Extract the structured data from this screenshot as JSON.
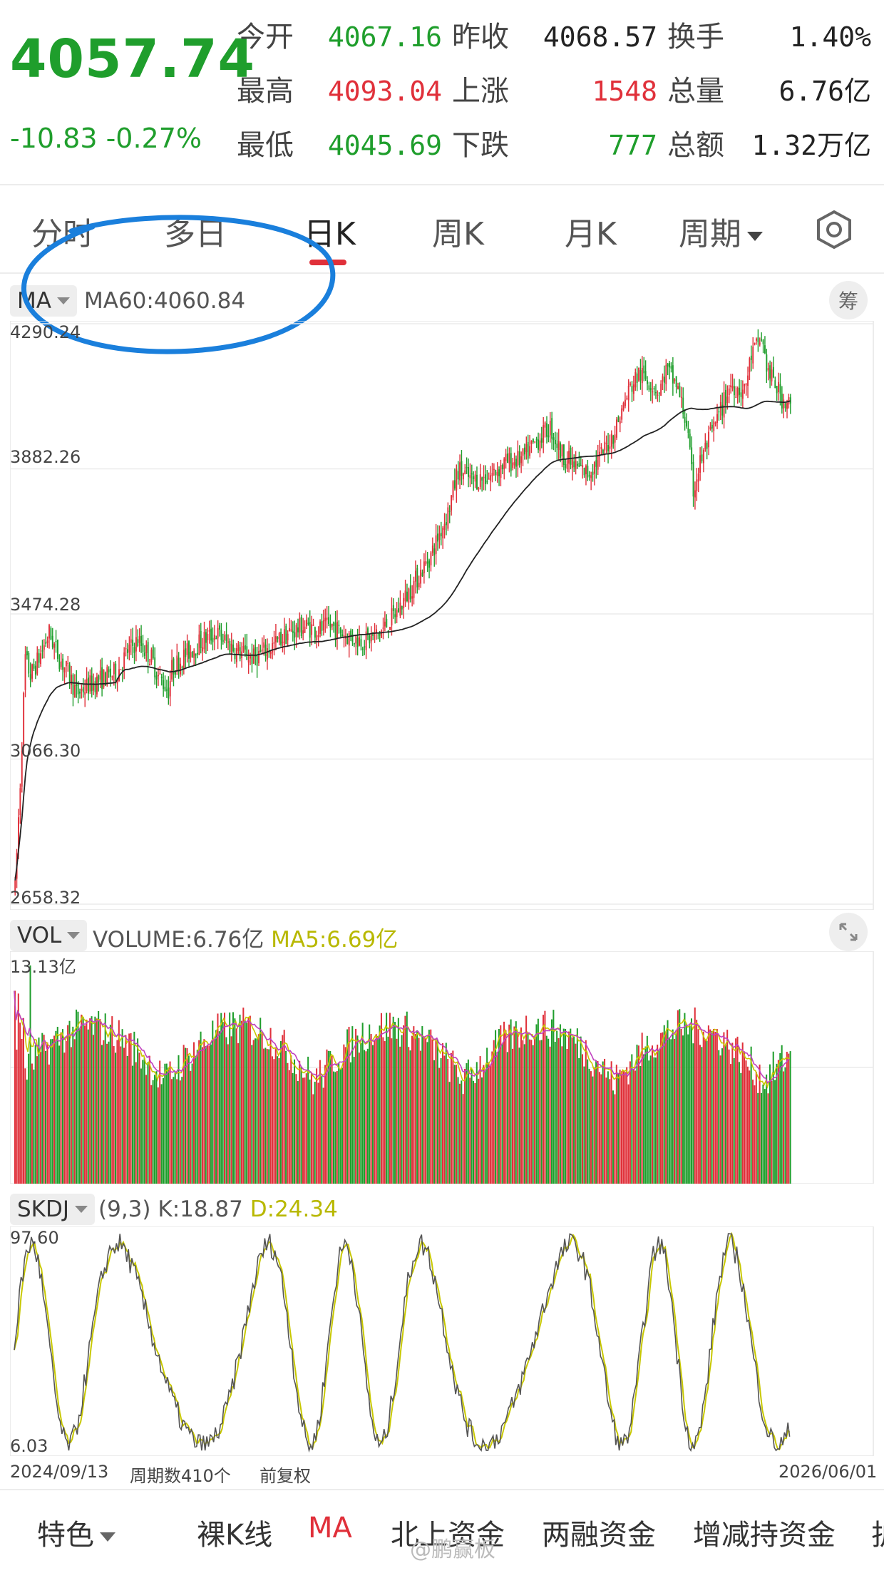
{
  "quote": {
    "price": "4057.74",
    "change": "-10.83",
    "change_pct": "-0.27%",
    "stats": [
      {
        "label": "今开",
        "value": "4067.16",
        "color": "green"
      },
      {
        "label": "昨收",
        "value": "4068.57",
        "color": "dark"
      },
      {
        "label": "换手",
        "value": "1.40%",
        "color": "dark"
      },
      {
        "label": "最高",
        "value": "4093.04",
        "color": "red"
      },
      {
        "label": "上涨",
        "value": "1548",
        "color": "red"
      },
      {
        "label": "总量",
        "value": "6.76亿",
        "color": "dark"
      },
      {
        "label": "最低",
        "value": "4045.69",
        "color": "green"
      },
      {
        "label": "下跌",
        "value": "777",
        "color": "green"
      },
      {
        "label": "总额",
        "value": "1.32万亿",
        "color": "dark"
      }
    ]
  },
  "tabs": [
    {
      "label": "分时"
    },
    {
      "label": "多日"
    },
    {
      "label": "日K",
      "active": true
    },
    {
      "label": "周K"
    },
    {
      "label": "月K"
    },
    {
      "label": "周期"
    }
  ],
  "main_chart": {
    "indicator": "MA",
    "ma_label": "MA60:4060.84",
    "chip_button": "筹",
    "y_ticks": [
      "4290.24",
      "3882.26",
      "3474.28",
      "3066.30",
      "2658.32"
    ]
  },
  "volume_chart": {
    "indicator": "VOL",
    "volume_label": "VOLUME:6.76亿",
    "ma5_label": "MA5:6.69亿",
    "top_tick": "13.13亿"
  },
  "skdj_chart": {
    "indicator": "SKDJ",
    "params": "(9,3)",
    "k_label": "K:18.87",
    "d_label": "D:24.34",
    "top_tick": "97.60",
    "bottom_tick": "6.03"
  },
  "footer": {
    "start_date": "2024/09/13",
    "period_count": "周期数410个",
    "adjust": "前复权",
    "end_date": "2026/06/01"
  },
  "bottom_bar": {
    "items": [
      {
        "label": "特色"
      },
      {
        "label": "裸K线"
      },
      {
        "label": "MA",
        "active": true
      },
      {
        "label": "北上资金"
      },
      {
        "label": "两融资金"
      },
      {
        "label": "增减持资金"
      },
      {
        "label": "护"
      }
    ]
  },
  "watermark": "@鹏赢板",
  "colors": {
    "up": "#e0303a",
    "down": "#1f9e2c",
    "ma": "#222222",
    "ma5": "#c8c800",
    "ma10": "#c040c0",
    "highlight": "#1a7fdc"
  }
}
